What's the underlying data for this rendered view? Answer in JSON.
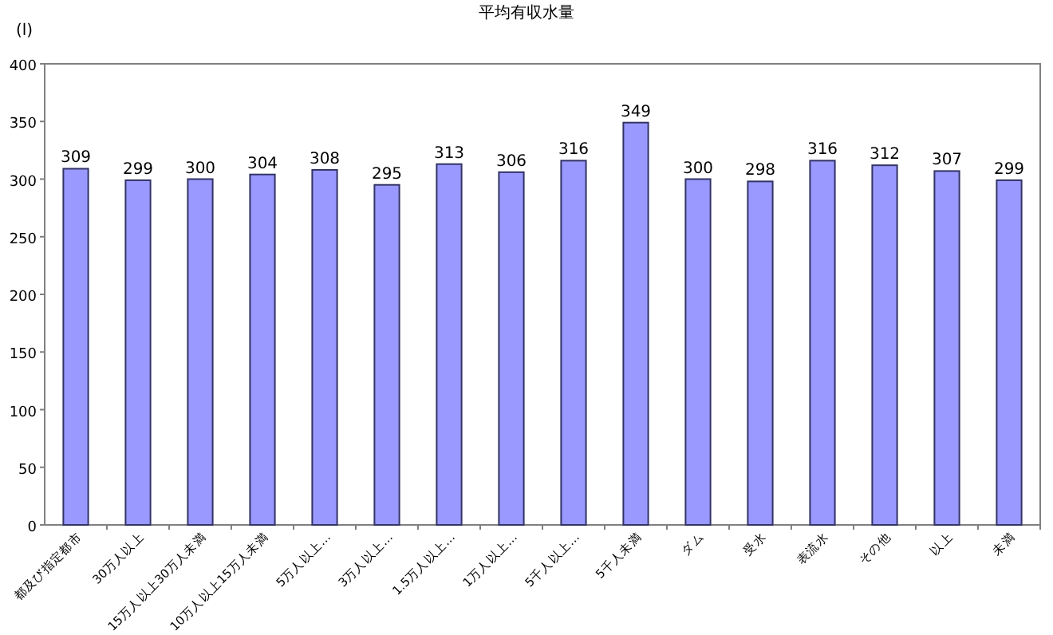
{
  "chart_data": {
    "type": "bar",
    "title": "平均有収水量",
    "ylabel": "(l)",
    "categories": [
      "都及び指定都市",
      "30万人以上",
      "15万人以上30万人未満",
      "10万人以上15万人未満",
      "5万人以上…",
      "3万人以上…",
      "1.5万人以上…",
      "1万人以上…",
      "5千人以上…",
      "5千人未満",
      "ダム",
      "受水",
      "表流水",
      "その他",
      "以上",
      "未満"
    ],
    "values": [
      309,
      299,
      300,
      304,
      308,
      295,
      313,
      306,
      316,
      349,
      300,
      298,
      316,
      312,
      307,
      299
    ],
    "color": "#9999ff",
    "ylim": [
      0,
      400
    ],
    "yticks": [
      0,
      50,
      100,
      150,
      200,
      250,
      300,
      350,
      400
    ],
    "data_labels": true
  }
}
